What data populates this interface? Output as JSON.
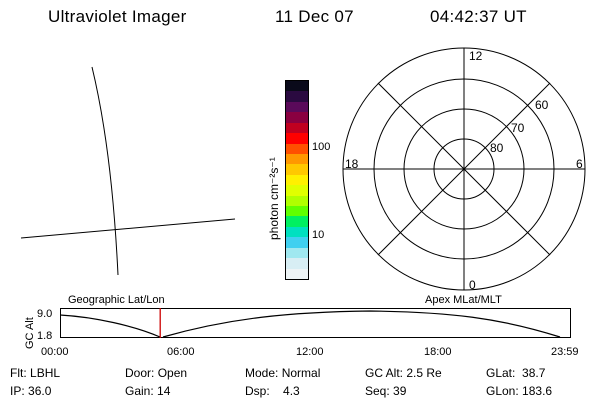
{
  "header": {
    "instrument": "Ultraviolet Imager",
    "date": "11 Dec 07",
    "time": "04:42:37 UT"
  },
  "colorbar": {
    "units_label": "photon cm⁻²s⁻¹",
    "ticks": [
      "100",
      "10"
    ],
    "colors": [
      "#0a0a1a",
      "#2a0a40",
      "#5a0a5a",
      "#8a0040",
      "#c00020",
      "#ff0000",
      "#ff5000",
      "#ff9800",
      "#ffc800",
      "#fff000",
      "#e0ff00",
      "#b0ff00",
      "#60ff00",
      "#00f060",
      "#00e0c0",
      "#40d0f0",
      "#a0e8f0",
      "#d8eef4",
      "#eef4f6"
    ]
  },
  "polar_plot": {
    "mlt_labels": {
      "top": "12",
      "bottom": "0",
      "left": "18",
      "right": "6"
    },
    "lat_labels": [
      "60",
      "70",
      "80"
    ]
  },
  "timeline": {
    "left_label": "Geographic Lat/Lon",
    "right_label": "Apex MLat/MLT",
    "axis_title": "GC Alt",
    "y_ticks": [
      "9.0",
      "1.8"
    ],
    "time_ticks": [
      "00:00",
      "06:00",
      "12:00",
      "18:00",
      "23:59"
    ],
    "marker_color": "#cc0000",
    "marker_time": "04:42:37"
  },
  "status": {
    "rows": [
      [
        {
          "label": "Flt:",
          "value": "LBHL"
        },
        {
          "label": "Door:",
          "value": "Open"
        },
        {
          "label": "Mode:",
          "value": "Normal"
        },
        {
          "label": "GC Alt:",
          "value": "2.5 Re"
        },
        {
          "label": "GLat:",
          "value": "38.7"
        }
      ],
      [
        {
          "label": "IP:",
          "value": "36.0"
        },
        {
          "label": "Gain:",
          "value": "14"
        },
        {
          "label": "Dsp:",
          "value": "4.3"
        },
        {
          "label": "Seq:",
          "value": "39"
        },
        {
          "label": "GLon:",
          "value": "183.6"
        }
      ]
    ]
  }
}
